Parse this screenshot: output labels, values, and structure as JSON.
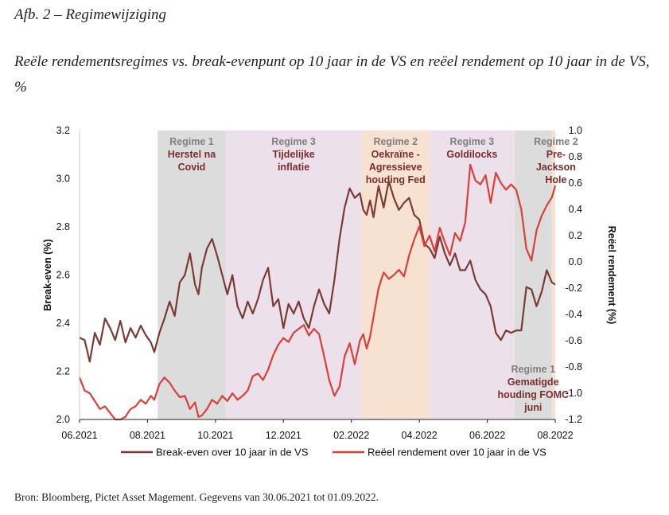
{
  "figure": {
    "label": "Afb. 2 – Regimewijziging",
    "title": "Reële rendementsregimes vs. break-evenpunt op 10 jaar in de VS en reëel rendement op 10 jaar in de VS, %",
    "source": "Bron: Bloomberg, Pictet Asset Magement. Gegevens van 30.06.2021 tot 01.09.2022."
  },
  "chart_data": {
    "type": "line",
    "xlabel": "",
    "x_ticks": [
      "06.2021",
      "08.2021",
      "10.2021",
      "12.2021",
      "02.2022",
      "04.2022",
      "06.2022",
      "08.2022"
    ],
    "x_range_months": [
      0,
      14
    ],
    "y_left": {
      "label": "Break-even (%)",
      "min": 2.0,
      "max": 3.2,
      "ticks": [
        "3.2",
        "3.0",
        "2.8",
        "2.6",
        "2.4",
        "2.2",
        "2.0"
      ]
    },
    "y_right": {
      "label": "Reëel rendement (%)",
      "min": -1.2,
      "max": 1.0,
      "ticks": [
        "1.0",
        "0.8",
        "0.6",
        "0.4",
        "0.2",
        "0.0",
        "-0.2",
        "-0.4",
        "-0.6",
        "-0.8",
        "-1.0",
        "-1.2"
      ]
    },
    "colors": {
      "breakeven": "#7b3b35",
      "real": "#d9403a",
      "regime1_fill": "#dcdcdc",
      "regime2_fill": "#f7e2d2",
      "regime3_fill": "#ece0ea"
    },
    "regimes": [
      {
        "start": 2.3,
        "end": 4.3,
        "kind": "regime1",
        "head": "Regime 1",
        "sub": [
          "Herstel na",
          "Covid"
        ]
      },
      {
        "start": 4.3,
        "end": 8.3,
        "kind": "regime3",
        "head": "Regime 3",
        "sub": [
          "Tijdelijke",
          "inflatie"
        ]
      },
      {
        "start": 8.3,
        "end": 10.3,
        "kind": "regime2",
        "head": "Regime 2",
        "sub": [
          "Oekraïne -",
          "Agressieve",
          "houding Fed"
        ]
      },
      {
        "start": 10.3,
        "end": 12.8,
        "kind": "regime3",
        "head": "Regime 3",
        "sub": [
          "Goldilocks"
        ]
      },
      {
        "start": 12.8,
        "end": 13.9,
        "kind": "regime1",
        "head": "Regime 1",
        "sub": [
          "Gematigde",
          "houding FOMC",
          "juni"
        ]
      },
      {
        "start": 13.9,
        "end": 14.9,
        "kind": "regime2",
        "head": "Regime 2",
        "sub": [
          "Pre-",
          "Jackson",
          "Hole"
        ]
      }
    ],
    "series": [
      {
        "name": "Break-even over 10 jaar in de VS",
        "axis": "left",
        "x": [
          0,
          0.15,
          0.3,
          0.45,
          0.6,
          0.75,
          0.9,
          1.05,
          1.2,
          1.35,
          1.5,
          1.65,
          1.8,
          1.95,
          2.1,
          2.2,
          2.35,
          2.5,
          2.65,
          2.8,
          2.95,
          3.1,
          3.25,
          3.4,
          3.5,
          3.6,
          3.75,
          3.9,
          4.05,
          4.2,
          4.35,
          4.5,
          4.65,
          4.8,
          4.95,
          5.1,
          5.25,
          5.4,
          5.55,
          5.7,
          5.85,
          6.0,
          6.15,
          6.3,
          6.45,
          6.6,
          6.75,
          6.9,
          7.05,
          7.2,
          7.35,
          7.5,
          7.65,
          7.8,
          7.95,
          8.1,
          8.25,
          8.35,
          8.45,
          8.55,
          8.65,
          8.8,
          8.95,
          9.1,
          9.25,
          9.4,
          9.55,
          9.7,
          9.85,
          10.0,
          10.15,
          10.3,
          10.45,
          10.6,
          10.75,
          10.9,
          11.05,
          11.2,
          11.35,
          11.5,
          11.65,
          11.8,
          11.95,
          12.1,
          12.25,
          12.4,
          12.55,
          12.7,
          12.85,
          13.0,
          13.15,
          13.3,
          13.45,
          13.6,
          13.75,
          13.9,
          14.0
        ],
        "values": [
          2.34,
          2.33,
          2.24,
          2.36,
          2.31,
          2.42,
          2.38,
          2.33,
          2.41,
          2.32,
          2.38,
          2.34,
          2.39,
          2.35,
          2.32,
          2.28,
          2.36,
          2.42,
          2.49,
          2.43,
          2.57,
          2.6,
          2.69,
          2.56,
          2.52,
          2.63,
          2.71,
          2.75,
          2.68,
          2.6,
          2.52,
          2.6,
          2.47,
          2.42,
          2.49,
          2.44,
          2.5,
          2.58,
          2.63,
          2.47,
          2.5,
          2.38,
          2.48,
          2.44,
          2.49,
          2.42,
          2.38,
          2.47,
          2.54,
          2.48,
          2.44,
          2.58,
          2.75,
          2.88,
          2.96,
          2.92,
          2.94,
          2.87,
          2.85,
          2.91,
          2.84,
          2.97,
          2.88,
          2.99,
          2.92,
          2.87,
          2.9,
          2.92,
          2.85,
          2.83,
          2.73,
          2.71,
          2.67,
          2.76,
          2.69,
          2.64,
          2.69,
          2.62,
          2.62,
          2.66,
          2.58,
          2.54,
          2.52,
          2.47,
          2.36,
          2.33,
          2.37,
          2.36,
          2.37,
          2.37,
          2.55,
          2.54,
          2.47,
          2.53,
          2.62,
          2.57,
          2.56
        ]
      },
      {
        "name": "Reëel rendement over 10 jaar in de VS",
        "axis": "right",
        "x": [
          0,
          0.15,
          0.3,
          0.45,
          0.6,
          0.75,
          0.9,
          1.05,
          1.2,
          1.35,
          1.5,
          1.65,
          1.8,
          1.95,
          2.1,
          2.2,
          2.35,
          2.5,
          2.65,
          2.8,
          2.95,
          3.1,
          3.25,
          3.4,
          3.5,
          3.6,
          3.75,
          3.9,
          4.05,
          4.2,
          4.35,
          4.5,
          4.65,
          4.8,
          4.95,
          5.1,
          5.25,
          5.4,
          5.55,
          5.7,
          5.85,
          6.0,
          6.15,
          6.3,
          6.45,
          6.6,
          6.75,
          6.9,
          7.05,
          7.2,
          7.35,
          7.5,
          7.65,
          7.8,
          7.95,
          8.1,
          8.25,
          8.35,
          8.45,
          8.55,
          8.65,
          8.8,
          8.95,
          9.1,
          9.25,
          9.4,
          9.55,
          9.7,
          9.85,
          10.0,
          10.15,
          10.3,
          10.45,
          10.6,
          10.75,
          10.9,
          11.05,
          11.2,
          11.35,
          11.5,
          11.65,
          11.8,
          11.95,
          12.1,
          12.25,
          12.4,
          12.55,
          12.7,
          12.85,
          13.0,
          13.15,
          13.3,
          13.45,
          13.6,
          13.75,
          13.9,
          14.0
        ],
        "values": [
          -0.88,
          -0.98,
          -1.0,
          -1.06,
          -1.12,
          -1.1,
          -1.15,
          -1.2,
          -1.2,
          -1.18,
          -1.12,
          -1.1,
          -1.05,
          -1.08,
          -1.02,
          -1.05,
          -0.93,
          -0.88,
          -0.92,
          -0.98,
          -1.03,
          -1.02,
          -1.12,
          -1.07,
          -1.18,
          -1.17,
          -1.12,
          -1.05,
          -1.08,
          -1.02,
          -1.06,
          -1.0,
          -1.05,
          -1.02,
          -0.98,
          -0.87,
          -0.85,
          -0.9,
          -0.82,
          -0.71,
          -0.63,
          -0.58,
          -0.61,
          -0.54,
          -0.51,
          -0.48,
          -0.56,
          -0.51,
          -0.55,
          -0.72,
          -0.9,
          -1.02,
          -0.95,
          -0.72,
          -0.62,
          -0.78,
          -0.6,
          -0.55,
          -0.66,
          -0.57,
          -0.42,
          -0.2,
          -0.08,
          -0.13,
          -0.1,
          -0.06,
          -0.11,
          0.05,
          0.17,
          0.27,
          0.12,
          0.2,
          0.08,
          0.26,
          0.15,
          0.05,
          0.22,
          0.16,
          0.3,
          0.74,
          0.62,
          0.59,
          0.66,
          0.45,
          0.68,
          0.6,
          0.55,
          0.59,
          0.55,
          0.4,
          0.1,
          0.01,
          0.24,
          0.35,
          0.43,
          0.49,
          0.58
        ]
      }
    ]
  }
}
